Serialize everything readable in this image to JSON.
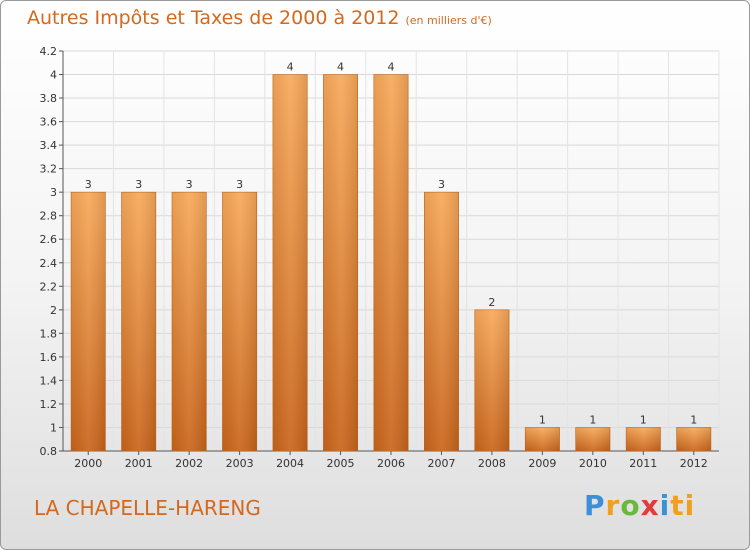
{
  "chart_data": {
    "type": "bar",
    "title": "Autres Impôts et Taxes de 2000 à 2012",
    "unit_label": "(en milliers d'€)",
    "categories": [
      "2000",
      "2001",
      "2002",
      "2003",
      "2004",
      "2005",
      "2006",
      "2007",
      "2008",
      "2009",
      "2010",
      "2011",
      "2012"
    ],
    "values": [
      3,
      3,
      3,
      3,
      4,
      4,
      4,
      3,
      2,
      1,
      1,
      1,
      1
    ],
    "data_labels": [
      "3",
      "3",
      "3",
      "3",
      "4",
      "4",
      "4",
      "3",
      "2",
      "1",
      "1",
      "1",
      "1"
    ],
    "ylim": [
      0.8,
      4.2
    ],
    "yticks": [
      0.8,
      1,
      1.2,
      1.4,
      1.6,
      1.8,
      2,
      2.2,
      2.4,
      2.6,
      2.8,
      3,
      3.2,
      3.4,
      3.6,
      3.8,
      4,
      4.2
    ],
    "ytick_labels": [
      "0.8",
      "1",
      "1.2",
      "1.4",
      "1.6",
      "1.8",
      "2",
      "2.2",
      "2.4",
      "2.6",
      "2.8",
      "3",
      "3.2",
      "3.4",
      "3.6",
      "3.8",
      "4",
      "4.2"
    ],
    "grid": true,
    "bar_color": "#f28c28"
  },
  "place_name": "LA CHAPELLE-HARENG",
  "brand": {
    "letters": [
      "P",
      "r",
      "o",
      "x",
      "i",
      "ti"
    ]
  }
}
